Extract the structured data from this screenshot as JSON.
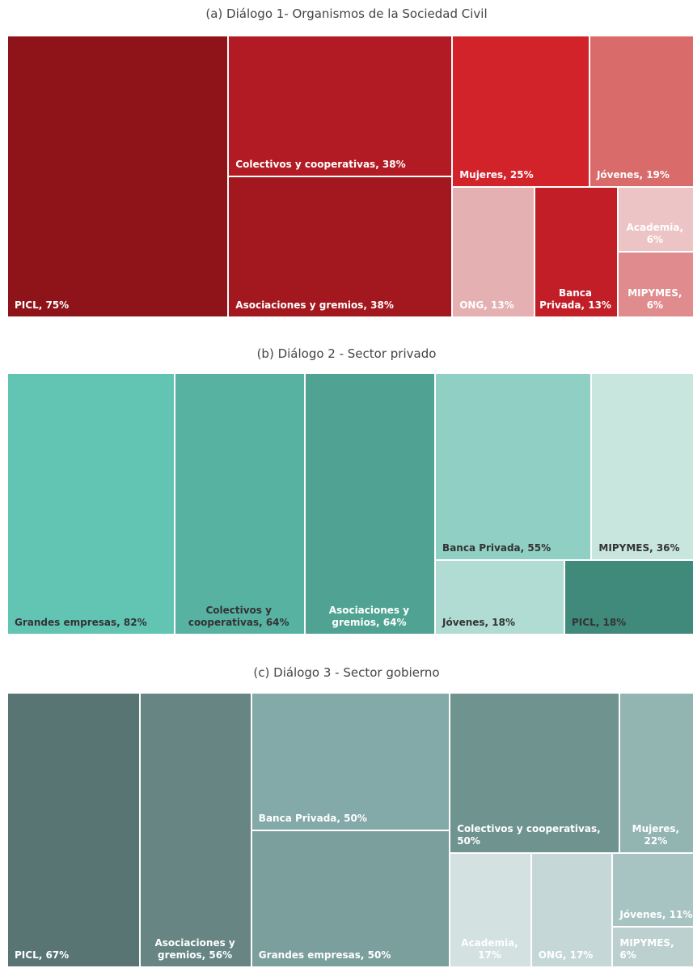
{
  "chart_data": [
    {
      "type": "treemap",
      "title": "(a) Diálogo 1- Organismos de la Sociedad Civil",
      "labels": [
        "PICL, 75%",
        "Colectivos y cooperativas, 38%",
        "Asociaciones y gremios, 38%",
        "Mujeres, 25%",
        "Jóvenes, 19%",
        "ONG, 13%",
        "Banca\nPrivada, 13%",
        "Academia,\n6%",
        "MIPYMES,\n6%"
      ],
      "values": [
        75,
        38,
        38,
        25,
        19,
        13,
        13,
        6,
        6
      ],
      "colors": [
        "#8e141a",
        "#b21b24",
        "#a3171e",
        "#d2232b",
        "#d96b6b",
        "#e4b0b2",
        "#c21e27",
        "#ecc4c5",
        "#e08c8f"
      ],
      "label_colors": [
        "#ffffff",
        "#ffffff",
        "#ffffff",
        "#ffffff",
        "#ffffff",
        "#ffffff",
        "#ffffff",
        "#ffffff",
        "#ffffff"
      ]
    },
    {
      "type": "treemap",
      "title": "(b) Diálogo 2 - Sector privado",
      "labels": [
        "Grandes empresas, 82%",
        "Colectivos y\ncooperativas, 64%",
        "Asociaciones y\ngremios, 64%",
        "Banca Privada, 55%",
        "MIPYMES, 36%",
        "Jóvenes, 18%",
        "PICL, 18%"
      ],
      "values": [
        82,
        64,
        64,
        55,
        36,
        18,
        18
      ],
      "colors": [
        "#62c5b3",
        "#57b2a2",
        "#50a392",
        "#90cfc3",
        "#c8e6de",
        "#b0dcd3",
        "#408a7b"
      ],
      "label_colors": [
        "#333333",
        "#333333",
        "#ffffff",
        "#333333",
        "#333333",
        "#333333",
        "#333333"
      ]
    },
    {
      "type": "treemap",
      "title": "(c) Diálogo 3 - Sector gobierno",
      "labels": [
        "PICL, 67%",
        "Asociaciones y\ngremios, 56%",
        "Banca Privada, 50%",
        "Grandes empresas, 50%",
        "Colectivos y cooperativas, 50%",
        "Mujeres,\n22%",
        "Academia,\n17%",
        "ONG, 17%",
        "Jóvenes, 11%",
        "MIPYMES, 6%"
      ],
      "values": [
        67,
        56,
        50,
        50,
        50,
        22,
        17,
        17,
        11,
        6
      ],
      "colors": [
        "#587574",
        "#668583",
        "#83a9a8",
        "#7a9f9d",
        "#6f9490",
        "#92b5b2",
        "#d3e1e1",
        "#c5d8d7",
        "#a8c4c2",
        "#bcd1cf"
      ],
      "label_colors": [
        "#ffffff",
        "#ffffff",
        "#ffffff",
        "#ffffff",
        "#ffffff",
        "#ffffff",
        "#ffffff",
        "#ffffff",
        "#ffffff",
        "#ffffff"
      ]
    }
  ]
}
